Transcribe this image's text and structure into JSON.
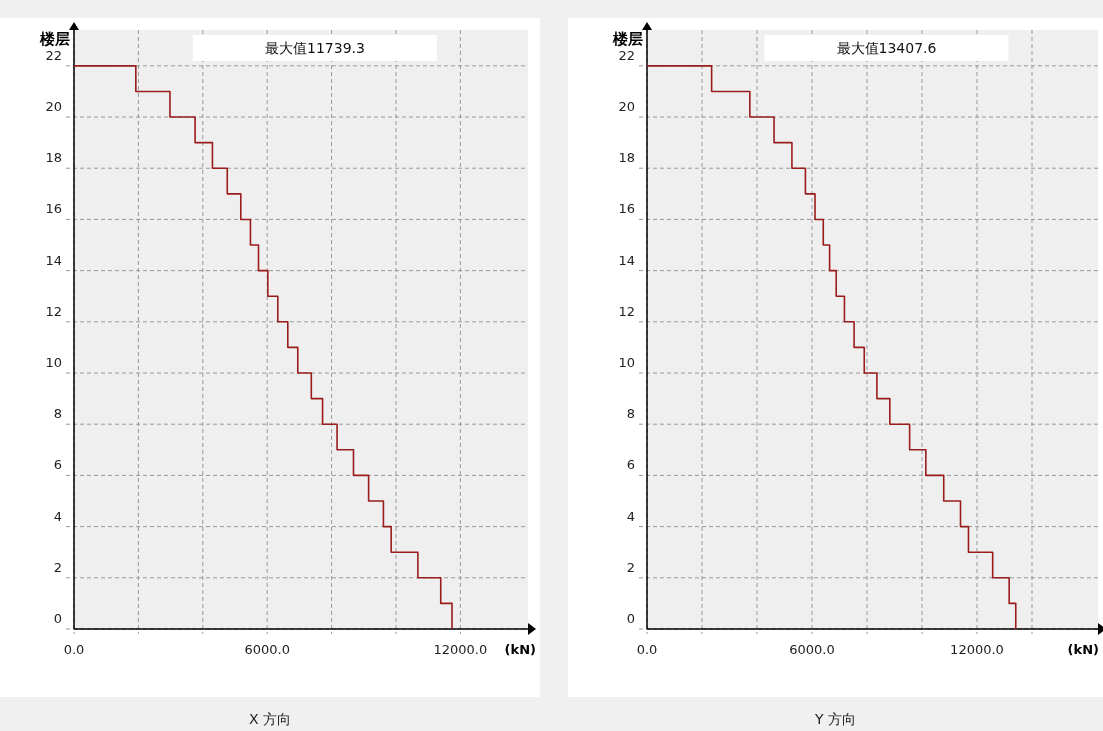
{
  "chart_data": [
    {
      "type": "step",
      "orientation": "horizontal",
      "title": "X 方向",
      "xlabel": "(kN)",
      "ylabel": "楼层",
      "annotations": [
        "最大值11739.3"
      ],
      "x": [
        22,
        21,
        20,
        19,
        18,
        17,
        16,
        15,
        14,
        13,
        12,
        11,
        10,
        9,
        8,
        7,
        6,
        5,
        4,
        3,
        2,
        1,
        0
      ],
      "series": [
        {
          "color": "#9b1c1c",
          "values": [
            0,
            1920,
            2980,
            3760,
            4300,
            4760,
            5180,
            5480,
            5730,
            6020,
            6330,
            6640,
            6950,
            7370,
            7720,
            8170,
            8680,
            9150,
            9610,
            9850,
            10680,
            11390,
            11740
          ]
        }
      ],
      "xlim": [
        0,
        14100
      ],
      "xticks": [
        {
          "value": 0,
          "label": "0.0"
        },
        {
          "value": 2000,
          "label": null
        },
        {
          "value": 4000,
          "label": null
        },
        {
          "value": 6000,
          "label": "6000.0"
        },
        {
          "value": 8000,
          "label": null
        },
        {
          "value": 10000,
          "label": null
        },
        {
          "value": 12000,
          "label": "12000.0"
        }
      ],
      "ylim": [
        0,
        23.4
      ],
      "yticks": [
        0,
        2,
        4,
        6,
        8,
        10,
        12,
        14,
        16,
        18,
        20,
        22
      ],
      "grid": true,
      "line_style": "solid"
    },
    {
      "type": "step",
      "orientation": "horizontal",
      "title": "Y 方向",
      "xlabel": "(kN)",
      "ylabel": "楼层",
      "annotations": [
        "最大值13407.6"
      ],
      "x": [
        22,
        21,
        20,
        19,
        18,
        17,
        16,
        15,
        14,
        13,
        12,
        11,
        10,
        9,
        8,
        7,
        6,
        5,
        4,
        3,
        2,
        1,
        0
      ],
      "series": [
        {
          "color": "#9b1c1c",
          "values": [
            0,
            2350,
            3740,
            4620,
            5270,
            5760,
            6110,
            6410,
            6640,
            6880,
            7180,
            7530,
            7900,
            8360,
            8830,
            9550,
            10140,
            10790,
            11400,
            11690,
            12570,
            13170,
            13410
          ]
        }
      ],
      "xlim": [
        0,
        16400
      ],
      "xticks": [
        {
          "value": 0,
          "label": "0.0"
        },
        {
          "value": 2000,
          "label": null
        },
        {
          "value": 4000,
          "label": null
        },
        {
          "value": 6000,
          "label": "6000.0"
        },
        {
          "value": 8000,
          "label": null
        },
        {
          "value": 10000,
          "label": null
        },
        {
          "value": 12000,
          "label": "12000.0"
        },
        {
          "value": 14000,
          "label": null
        }
      ],
      "ylim": [
        0,
        23.4
      ],
      "yticks": [
        0,
        2,
        4,
        6,
        8,
        10,
        12,
        14,
        16,
        18,
        20,
        22
      ],
      "grid": true,
      "line_style": "solid"
    }
  ]
}
